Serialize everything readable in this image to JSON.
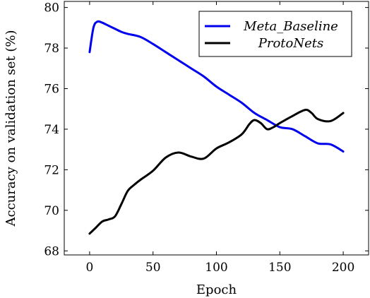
{
  "chart_data": {
    "type": "line",
    "xlabel": "Epoch",
    "ylabel": "Accuracy on validation set (%)",
    "xlim": [
      -20,
      220
    ],
    "ylim": [
      67.8,
      80.3
    ],
    "xticks": [
      0,
      50,
      100,
      150,
      200
    ],
    "yticks": [
      68,
      70,
      72,
      74,
      76,
      78,
      80
    ],
    "grid": false,
    "legend_position": "top-right",
    "series": [
      {
        "name": "Meta_Baseline",
        "color": "#0000ee",
        "x": [
          0,
          3,
          6,
          10,
          15,
          20,
          25,
          30,
          40,
          50,
          60,
          70,
          80,
          90,
          100,
          110,
          120,
          130,
          140,
          150,
          160,
          170,
          180,
          190,
          200
        ],
        "y": [
          77.8,
          79.0,
          79.3,
          79.25,
          79.1,
          78.95,
          78.8,
          78.7,
          78.55,
          78.2,
          77.8,
          77.4,
          77.0,
          76.6,
          76.1,
          75.7,
          75.3,
          74.8,
          74.45,
          74.1,
          74.0,
          73.65,
          73.3,
          73.25,
          72.9
        ]
      },
      {
        "name": "ProtoNets",
        "color": "#000000",
        "x": [
          0,
          5,
          10,
          15,
          20,
          25,
          30,
          35,
          40,
          50,
          60,
          70,
          80,
          90,
          100,
          110,
          120,
          126,
          130,
          135,
          140,
          145,
          150,
          160,
          170,
          175,
          180,
          190,
          200
        ],
        "y": [
          68.85,
          69.15,
          69.45,
          69.55,
          69.7,
          70.3,
          70.95,
          71.25,
          71.5,
          71.95,
          72.6,
          72.85,
          72.65,
          72.55,
          73.05,
          73.35,
          73.75,
          74.25,
          74.45,
          74.3,
          74.0,
          74.1,
          74.3,
          74.65,
          74.95,
          74.8,
          74.5,
          74.4,
          74.8
        ]
      }
    ]
  }
}
